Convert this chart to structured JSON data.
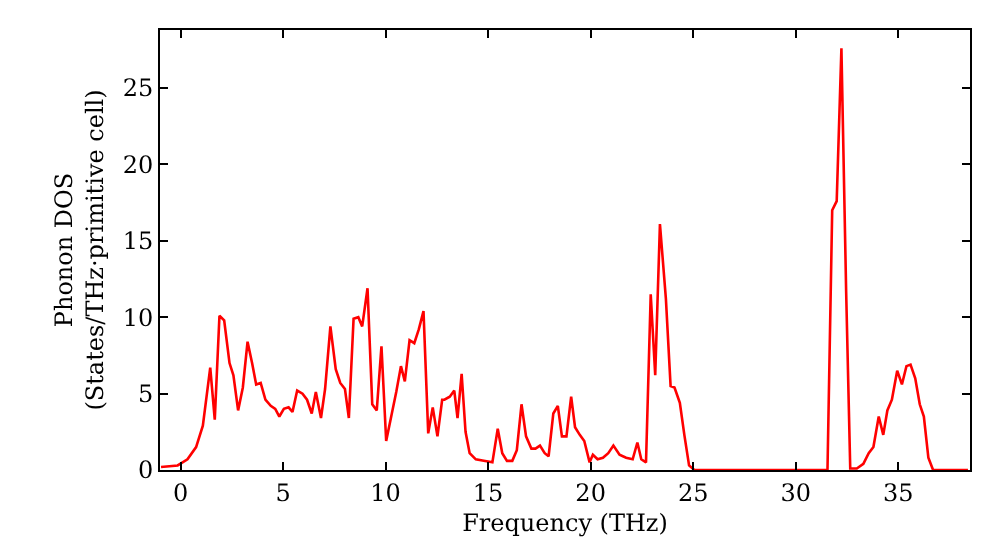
{
  "chart_data": {
    "type": "line",
    "xlabel": "Frequency (THz)",
    "ylabel": "Phonon DOS\n(States/THz·primitive cell)",
    "xlim": [
      -1,
      38.5
    ],
    "ylim": [
      0,
      28.8
    ],
    "xticks": [
      0,
      5,
      10,
      15,
      20,
      25,
      30,
      35
    ],
    "yticks": [
      0,
      5,
      10,
      15,
      20,
      25
    ],
    "marker": "none",
    "line_style": "solid",
    "series": [
      {
        "color": "#ff0000",
        "x": [
          -0.95,
          -0.14,
          0.34,
          0.76,
          1.09,
          1.45,
          1.67,
          1.9,
          2.13,
          2.39,
          2.58,
          2.81,
          3.04,
          3.27,
          3.49,
          3.69,
          3.91,
          4.14,
          4.4,
          4.62,
          4.82,
          5.04,
          5.27,
          5.46,
          5.69,
          5.95,
          6.17,
          6.4,
          6.6,
          6.85,
          7.05,
          7.31,
          7.57,
          7.79,
          8.02,
          8.21,
          8.44,
          8.67,
          8.86,
          9.12,
          9.35,
          9.57,
          9.8,
          10.03,
          10.29,
          10.52,
          10.75,
          10.94,
          11.17,
          11.4,
          11.62,
          11.85,
          12.08,
          12.3,
          12.53,
          12.76,
          12.87,
          13.13,
          13.35,
          13.51,
          13.71,
          13.9,
          14.1,
          14.4,
          14.79,
          15.21,
          15.47,
          15.69,
          15.92,
          16.18,
          16.4,
          16.63,
          16.85,
          17.11,
          17.31,
          17.53,
          17.76,
          17.95,
          18.18,
          18.4,
          18.6,
          18.82,
          19.05,
          19.24,
          19.47,
          19.69,
          19.95,
          20.11,
          20.34,
          20.6,
          20.86,
          21.11,
          21.41,
          21.73,
          22.05,
          22.28,
          22.47,
          22.7,
          22.93,
          23.15,
          23.38,
          23.67,
          23.9,
          24.09,
          24.35,
          24.57,
          24.8,
          25.06,
          31.55,
          31.78,
          32.0,
          32.23,
          32.46,
          32.66,
          32.98,
          33.3,
          33.56,
          33.79,
          34.05,
          34.27,
          34.47,
          34.69,
          34.95,
          35.18,
          35.4,
          35.6,
          35.83,
          36.05,
          36.25,
          36.47,
          36.7,
          38.4
        ],
        "values": [
          0.2,
          0.3,
          0.7,
          1.5,
          2.9,
          6.7,
          3.3,
          10.1,
          9.8,
          7.0,
          6.2,
          3.9,
          5.4,
          8.4,
          7.0,
          5.6,
          5.7,
          4.6,
          4.2,
          4.0,
          3.5,
          4.0,
          4.1,
          3.8,
          5.2,
          5.0,
          4.6,
          3.7,
          5.1,
          3.4,
          5.3,
          9.4,
          6.6,
          5.7,
          5.3,
          3.4,
          9.9,
          10.0,
          9.4,
          11.9,
          4.3,
          3.9,
          8.1,
          1.9,
          3.6,
          5.1,
          6.8,
          5.8,
          8.5,
          8.3,
          9.2,
          10.4,
          2.4,
          4.1,
          2.2,
          4.6,
          4.6,
          4.8,
          5.2,
          3.4,
          6.3,
          2.5,
          1.1,
          0.7,
          0.6,
          0.5,
          2.7,
          1.1,
          0.6,
          0.6,
          1.3,
          4.3,
          2.2,
          1.4,
          1.4,
          1.6,
          1.1,
          0.9,
          3.7,
          4.2,
          2.2,
          2.2,
          4.8,
          2.8,
          2.3,
          1.9,
          0.5,
          1.0,
          0.7,
          0.8,
          1.1,
          1.6,
          1.0,
          0.8,
          0.7,
          1.8,
          0.7,
          0.5,
          11.5,
          6.2,
          16.1,
          11.2,
          5.5,
          5.4,
          4.4,
          2.3,
          0.3,
          0.0,
          0.0,
          17.0,
          17.6,
          27.6,
          11.7,
          0.1,
          0.1,
          0.4,
          1.1,
          1.5,
          3.5,
          2.3,
          3.9,
          4.6,
          6.5,
          5.6,
          6.8,
          6.9,
          6.0,
          4.3,
          3.5,
          0.8,
          0.0,
          0.0
        ]
      }
    ]
  }
}
